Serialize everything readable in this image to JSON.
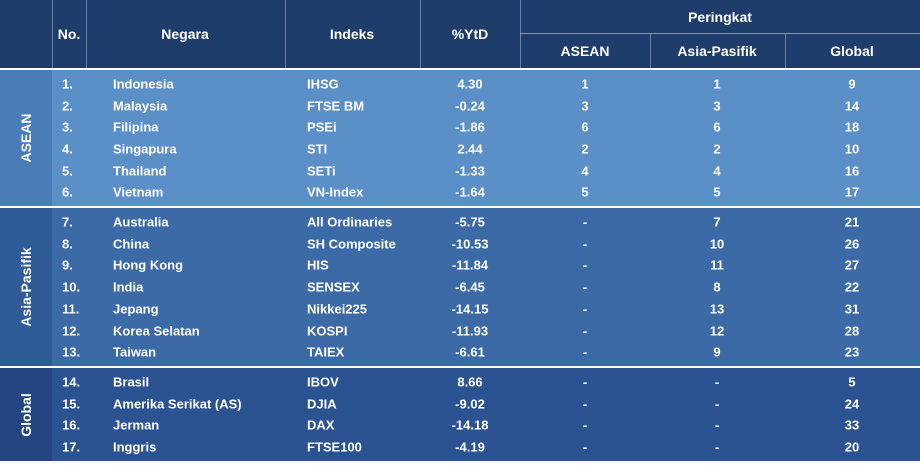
{
  "header": {
    "columns": [
      "No.",
      "Negara",
      "Indeks",
      "%YtD"
    ],
    "group": "Peringkat",
    "subcolumns": [
      "ASEAN",
      "Asia-Pasifik",
      "Global"
    ]
  },
  "groups": [
    {
      "label": "ASEAN",
      "rows": [
        [
          "1.",
          "Indonesia",
          "IHSG",
          "4.30",
          "1",
          "1",
          "9"
        ],
        [
          "2.",
          "Malaysia",
          "FTSE BM",
          "-0.24",
          "3",
          "3",
          "14"
        ],
        [
          "3.",
          "Filipina",
          "PSEi",
          "-1.86",
          "6",
          "6",
          "18"
        ],
        [
          "4.",
          "Singapura",
          "STI",
          "2.44",
          "2",
          "2",
          "10"
        ],
        [
          "5.",
          "Thailand",
          "SETi",
          "-1.33",
          "4",
          "4",
          "16"
        ],
        [
          "6.",
          "Vietnam",
          "VN-Index",
          "-1.64",
          "5",
          "5",
          "17"
        ]
      ]
    },
    {
      "label": "Asia-Pasifik",
      "rows": [
        [
          "7.",
          "Australia",
          "All Ordinaries",
          "-5.75",
          "-",
          "7",
          "21"
        ],
        [
          "8.",
          "China",
          "SH Composite",
          "-10.53",
          "-",
          "10",
          "26"
        ],
        [
          "9.",
          "Hong Kong",
          "HIS",
          "-11.84",
          "-",
          "11",
          "27"
        ],
        [
          "10.",
          "India",
          "SENSEX",
          "-6.45",
          "-",
          "8",
          "22"
        ],
        [
          "11.",
          "Jepang",
          "Nikkei225",
          "-14.15",
          "-",
          "13",
          "31"
        ],
        [
          "12.",
          "Korea Selatan",
          "KOSPI",
          "-11.93",
          "-",
          "12",
          "28"
        ],
        [
          "13.",
          "Taiwan",
          "TAIEX",
          "-6.61",
          "-",
          "9",
          "23"
        ]
      ]
    },
    {
      "label": "Global",
      "rows": [
        [
          "14.",
          "Brasil",
          "IBOV",
          "8.66",
          "-",
          "-",
          "5"
        ],
        [
          "15.",
          "Amerika Serikat (AS)",
          "DJIA",
          "-9.02",
          "-",
          "-",
          "24"
        ],
        [
          "16.",
          "Jerman",
          "DAX",
          "-14.18",
          "-",
          "-",
          "33"
        ],
        [
          "17.",
          "Inggris",
          "FTSE100",
          "-4.19",
          "-",
          "-",
          "20"
        ]
      ]
    }
  ]
}
